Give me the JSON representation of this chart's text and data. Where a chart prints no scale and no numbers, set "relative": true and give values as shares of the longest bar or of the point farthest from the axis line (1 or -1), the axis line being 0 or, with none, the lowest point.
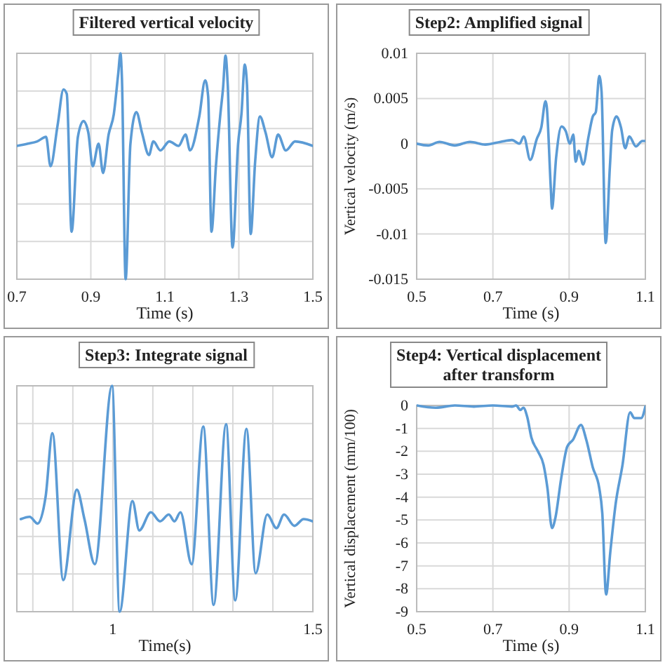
{
  "chart_data": [
    {
      "type": "line",
      "title": "Filtered vertical velocity",
      "xlabel": "Time (s)",
      "relative": true,
      "grid": true,
      "xlim": [
        0.7,
        1.5
      ],
      "xticks": [
        0.7,
        0.9,
        1.1,
        1.3,
        1.5
      ],
      "color": "#5b9bd5",
      "x": [
        0.7,
        0.73,
        0.755,
        0.779,
        0.791,
        0.81,
        0.826,
        0.835,
        0.848,
        0.865,
        0.88,
        0.893,
        0.905,
        0.921,
        0.933,
        0.948,
        0.962,
        0.974,
        0.98,
        0.984,
        0.994,
        1.007,
        1.023,
        1.038,
        1.057,
        1.069,
        1.088,
        1.112,
        1.137,
        1.156,
        1.168,
        1.193,
        1.209,
        1.217,
        1.226,
        1.238,
        1.25,
        1.257,
        1.264,
        1.27,
        1.283,
        1.298,
        1.307,
        1.316,
        1.322,
        1.332,
        1.344,
        1.357,
        1.372,
        1.39,
        1.406,
        1.427,
        1.452,
        1.5
      ],
      "values": [
        0.59,
        0.6,
        0.61,
        0.63,
        0.5,
        0.68,
        0.84,
        0.82,
        0.21,
        0.63,
        0.7,
        0.65,
        0.5,
        0.6,
        0.47,
        0.64,
        0.73,
        0.91,
        1,
        0.89,
        0,
        0.6,
        0.74,
        0.65,
        0.55,
        0.61,
        0.57,
        0.61,
        0.59,
        0.64,
        0.57,
        0.72,
        0.88,
        0.81,
        0.21,
        0.5,
        0.73,
        0.84,
        0.99,
        0.86,
        0.14,
        0.6,
        0.73,
        0.95,
        0.86,
        0.2,
        0.52,
        0.72,
        0.65,
        0.54,
        0.64,
        0.57,
        0.61,
        0.59
      ]
    },
    {
      "type": "line",
      "title": "Step2: Amplified signal",
      "xlabel": "Time (s)",
      "ylabel": "Vertical velocity (m/s)",
      "grid": true,
      "xlim": [
        0.5,
        1.1
      ],
      "xticks": [
        0.5,
        0.7,
        0.9,
        1.1
      ],
      "ylim": [
        -0.015,
        0.01
      ],
      "yticks": [
        -0.015,
        -0.01,
        -0.005,
        0,
        0.005,
        0.01
      ],
      "color": "#5b9bd5",
      "x": [
        0.5,
        0.53,
        0.56,
        0.6,
        0.64,
        0.68,
        0.72,
        0.75,
        0.77,
        0.781,
        0.798,
        0.815,
        0.827,
        0.838,
        0.841,
        0.852,
        0.855,
        0.866,
        0.88,
        0.891,
        0.902,
        0.911,
        0.917,
        0.925,
        0.937,
        0.951,
        0.962,
        0.97,
        0.979,
        0.985,
        0.996,
        1.007,
        1.013,
        1.024,
        1.036,
        1.047,
        1.058,
        1.075,
        1.092,
        1.1
      ],
      "values": [
        0,
        -0.0002,
        0.0002,
        -0.0002,
        0.0002,
        -0.0001,
        0.0002,
        0.0004,
        0,
        0.0008,
        -0.0018,
        0.0005,
        0.0018,
        0.0047,
        0.0042,
        -0.005,
        -0.0072,
        -0.0015,
        0.0019,
        0.0014,
        0,
        0.001,
        -0.002,
        -0.0008,
        -0.0023,
        0.0008,
        0.003,
        0.0035,
        0.0075,
        0.0058,
        -0.011,
        -0.0025,
        0.0015,
        0.003,
        0.0018,
        -0.0005,
        0.0008,
        -0.0003,
        0.0003,
        0.0003
      ]
    },
    {
      "type": "line",
      "title": "Step3: Integrate signal",
      "xlabel": "Time(s)",
      "relative": true,
      "grid": true,
      "xlim": [
        0.76,
        1.5
      ],
      "xticks": [
        {
          "value": 0.8,
          "label": null
        },
        {
          "value": 0.9,
          "label": null
        },
        1,
        {
          "value": 1.1,
          "label": null
        },
        {
          "value": 1.2,
          "label": null
        },
        {
          "value": 1.3,
          "label": null
        },
        {
          "value": 1.4,
          "label": null
        },
        1.5
      ],
      "color": "#5b9bd5",
      "x": [
        0.77,
        0.792,
        0.812,
        0.832,
        0.849,
        0.876,
        0.91,
        0.929,
        0.955,
        0.998,
        1.017,
        1.049,
        1.066,
        1.095,
        1.118,
        1.14,
        1.154,
        1.169,
        1.197,
        1.226,
        1.252,
        1.283,
        1.306,
        1.334,
        1.357,
        1.386,
        1.409,
        1.428,
        1.454,
        1.477,
        1.5
      ],
      "values": [
        0.41,
        0.42,
        0.39,
        0.51,
        0.79,
        0.14,
        0.54,
        0.41,
        0.21,
        1,
        0,
        0.49,
        0.36,
        0.44,
        0.4,
        0.43,
        0.4,
        0.44,
        0.21,
        0.82,
        0.03,
        0.83,
        0.05,
        0.81,
        0.17,
        0.43,
        0.37,
        0.43,
        0.38,
        0.41,
        0.4
      ]
    },
    {
      "type": "line",
      "title": "Step4: Vertical displacement after transform",
      "xlabel": "Time (s)",
      "ylabel": "Vertical displacement (mm/100)",
      "grid": true,
      "xlim": [
        0.5,
        1.1
      ],
      "xticks": [
        0.5,
        0.7,
        0.9,
        1.1
      ],
      "ylim": [
        -9,
        0
      ],
      "yticks": [
        -9,
        -8,
        -7,
        -6,
        -5,
        -4,
        -3,
        -2,
        -1,
        0
      ],
      "color": "#5b9bd5",
      "x": [
        0.5,
        0.55,
        0.6,
        0.65,
        0.7,
        0.75,
        0.761,
        0.772,
        0.78,
        0.79,
        0.801,
        0.818,
        0.833,
        0.843,
        0.855,
        0.864,
        0.879,
        0.895,
        0.91,
        0.931,
        0.945,
        0.962,
        0.979,
        0.987,
        0.997,
        1.008,
        1.022,
        1.04,
        1.06,
        1.071,
        1.089,
        1.1
      ],
      "values": [
        0,
        -0.1,
        0,
        -0.05,
        0,
        -0.05,
        0,
        -0.2,
        -0.1,
        -0.5,
        -1.4,
        -2,
        -2.6,
        -3.6,
        -5.35,
        -4.9,
        -3.2,
        -1.8,
        -1.5,
        -0.85,
        -1.5,
        -2.7,
        -3.6,
        -4.7,
        -8.25,
        -6.4,
        -4.3,
        -2.6,
        -0.3,
        -0.55,
        -0.55,
        -0.05
      ]
    }
  ]
}
